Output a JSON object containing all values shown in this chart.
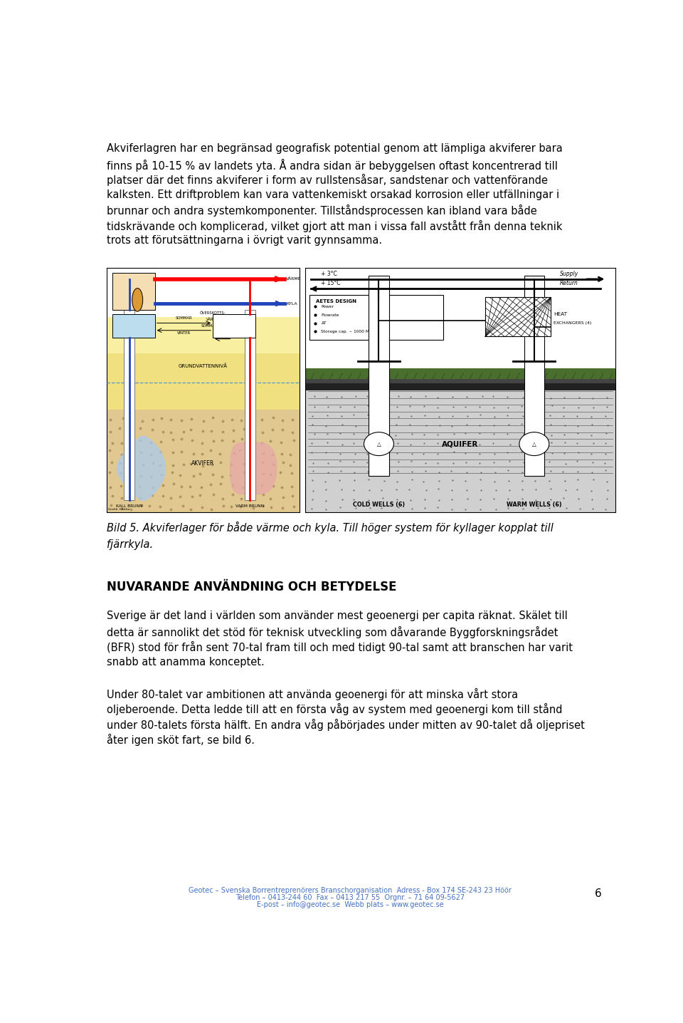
{
  "page_bg": "#ffffff",
  "text_color": "#000000",
  "footer_color": "#4472c4",
  "page_number": "6",
  "para1_lines": [
    "Akviferlagren har en begränsad geografisk potential genom att lämpliga akviferer bara",
    "finns på 10-15 % av landets yta. Å andra sidan är bebyggelsen oftast koncentrerad till",
    "platser där det finns akviferer i form av rullstensåsar, sandstenar och vattenförande",
    "kalksten. Ett driftproblem kan vara vattenkemiskt orsakad korrosion eller utfällningar i",
    "brunnar och andra systemkomponenter. Tillståndsprocessen kan ibland vara både",
    "tidskrävande och komplicerad, vilket gjort att man i vissa fall avstått från denna teknik",
    "trots att förutsättningarna i övrigt varit gynnsamma."
  ],
  "caption_lines": [
    "Bild 5. Akviferlager för både värme och kyla. Till höger system för kyllager kopplat till",
    "fjärrkyla."
  ],
  "section_title": "NUVARANDE ANVÄNDNING OCH BETYDELSE",
  "para2_lines": [
    "Sverige är det land i världen som använder mest geoenergi per capita räknat. Skälet till",
    "detta är sannolikt det stöd för teknisk utveckling som dåvarande Byggforskningsrådet",
    "(BFR) stod för från sent 70-tal fram till och med tidigt 90-tal samt att branschen har varit",
    "snabb att anamma konceptet."
  ],
  "para3_lines": [
    "Under 80-talet var ambitionen att använda geoenergi för att minska vårt stora",
    "oljeberoende. Detta ledde till att en första våg av system med geoenergi kom till stånd",
    "under 80-talets första hälft. En andra våg påbörjades under mitten av 90-talet då oljepriset",
    "åter igen sköt fart, se bild 6."
  ],
  "footer_line1": "Geotec – Svenska Borrentreprenörers Branschorganisation  Adress - Box 174 SE-243 23 Höör",
  "footer_line2": "Telefon – 0413-244 60  Fax – 0413 217 55  Orgnr. – 71 64 09-5627",
  "footer_line3": "E-post – info@geotec.se  Webb plats – www.geotec.se",
  "ml": 0.04,
  "text_fontsize": 10.5,
  "lsp": 0.0195
}
